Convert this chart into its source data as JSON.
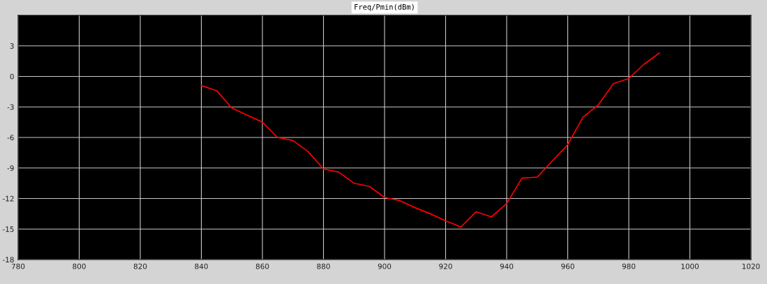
{
  "chart_data": {
    "type": "line",
    "title": "Freq/Pmin(dBm)",
    "x": [
      840,
      845,
      850,
      855,
      860,
      865,
      870,
      875,
      880,
      885,
      890,
      895,
      900,
      905,
      910,
      915,
      920,
      925,
      930,
      935,
      940,
      945,
      950,
      955,
      960,
      965,
      970,
      975,
      980,
      985,
      990
    ],
    "series": [
      {
        "color": "#ff0000",
        "values": [
          -0.9,
          -1.4,
          -3.1,
          -3.8,
          -4.5,
          -6.0,
          -6.3,
          -7.4,
          -9.1,
          -9.4,
          -10.5,
          -10.8,
          -11.9,
          -12.2,
          -12.9,
          -13.5,
          -14.2,
          -14.8,
          -13.3,
          -13.8,
          -12.5,
          -10.0,
          -9.9,
          -8.3,
          -6.7,
          -4.0,
          -2.8,
          -0.7,
          -0.2,
          1.2,
          2.3
        ]
      }
    ],
    "xlim": [
      780,
      1020
    ],
    "xticks": [
      780,
      800,
      820,
      840,
      860,
      880,
      900,
      920,
      940,
      960,
      980,
      1000,
      1020
    ],
    "ylim": [
      -18,
      6
    ],
    "yticks": [
      -18,
      -15,
      -12,
      -9,
      -6,
      -3,
      0,
      3
    ],
    "grid": true,
    "marker": "none",
    "line_style": "solid"
  }
}
